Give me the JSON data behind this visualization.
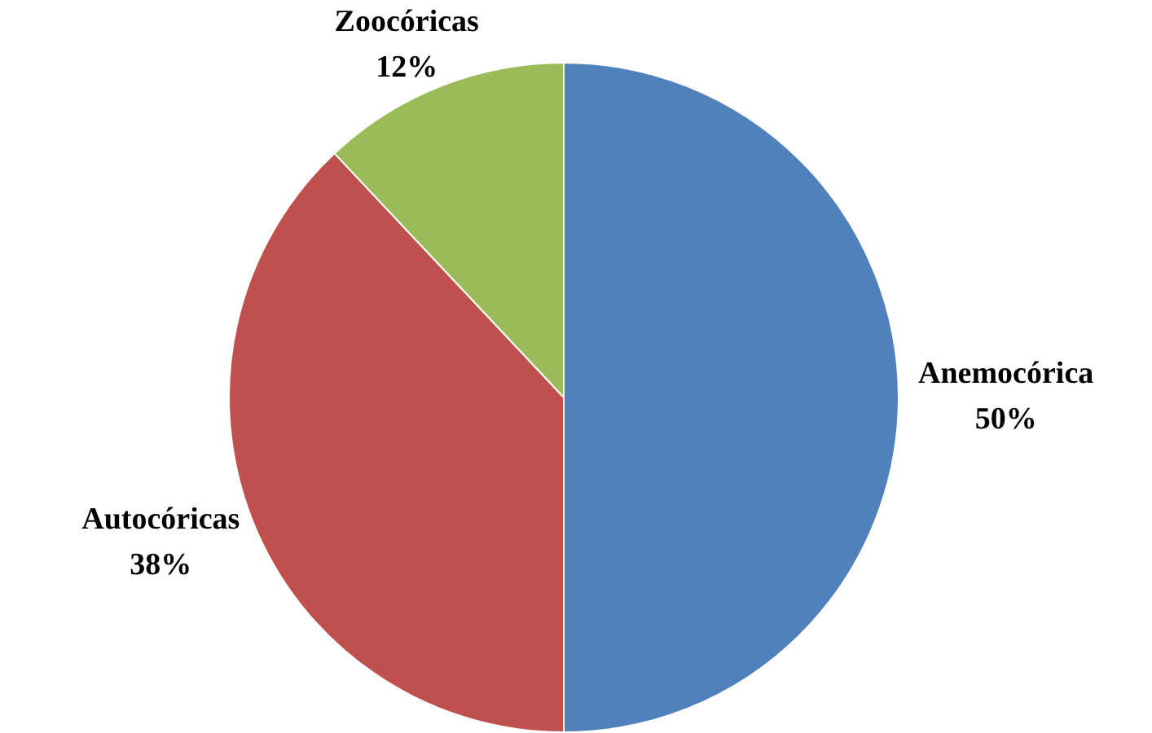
{
  "chart_data": {
    "type": "pie",
    "categories": [
      "Anemocórica",
      "Autocóricas",
      "Zoocóricas"
    ],
    "values": [
      50,
      38,
      12
    ],
    "value_labels": [
      "50%",
      "38%",
      "12%"
    ],
    "colors": [
      "#4f81bd",
      "#c0504d",
      "#9bbb59"
    ],
    "legend": false
  }
}
